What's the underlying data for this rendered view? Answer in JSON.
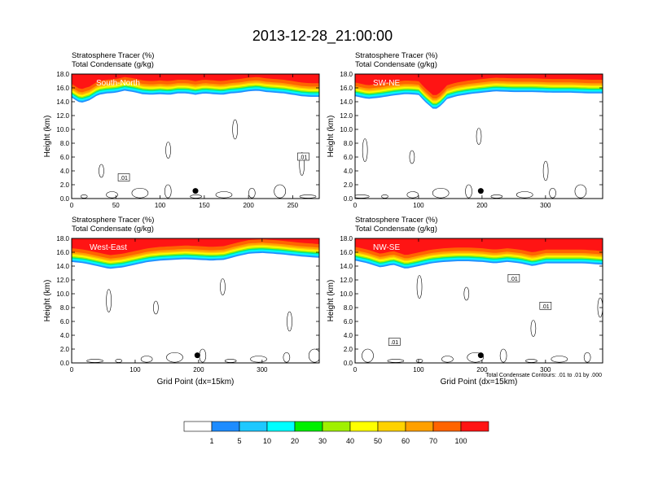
{
  "figure": {
    "title": "2013-12-28_21:00:00",
    "footnote": "Total Condensate Contours: .01 to .01 by .000",
    "colors": {
      "levels": [
        "#ffffff",
        "#1e8cff",
        "#1ec8ff",
        "#00ffff",
        "#00e68c",
        "#00f000",
        "#a0f000",
        "#ffff00",
        "#ffd200",
        "#ffa000",
        "#ff6400",
        "#ff1414"
      ]
    }
  },
  "chart_data": [
    {
      "type": "heatmap",
      "id": "south-north",
      "label": "South-North",
      "header_line1": "Stratosphere Tracer   (%)",
      "header_line2": "Total Condensate   (g/kg)",
      "ylabel": "Height (km)",
      "xlabel": "",
      "xlim": [
        0,
        280
      ],
      "ylim": [
        0,
        18
      ],
      "xticks": [
        "0",
        "50",
        "100",
        "150",
        "200",
        "250"
      ],
      "yticks": [
        "0.0",
        "2.0",
        "4.0",
        "6.0",
        "8.0",
        "10.0",
        "12.0",
        "14.0",
        "16.0",
        "18.0"
      ],
      "tracer_front_km": [
        [
          0,
          15.2
        ],
        [
          10,
          14.4
        ],
        [
          20,
          14.8
        ],
        [
          30,
          15.6
        ],
        [
          40,
          15.8
        ],
        [
          50,
          15.9
        ],
        [
          60,
          16.2
        ],
        [
          70,
          16.0
        ],
        [
          80,
          15.7
        ],
        [
          90,
          15.6
        ],
        [
          100,
          15.7
        ],
        [
          110,
          15.6
        ],
        [
          120,
          15.8
        ],
        [
          130,
          15.8
        ],
        [
          140,
          15.6
        ],
        [
          150,
          15.8
        ],
        [
          160,
          15.7
        ],
        [
          170,
          15.6
        ],
        [
          180,
          15.8
        ],
        [
          190,
          15.9
        ],
        [
          200,
          16.1
        ],
        [
          210,
          16.2
        ],
        [
          220,
          16.0
        ],
        [
          230,
          15.9
        ],
        [
          240,
          15.8
        ],
        [
          250,
          15.6
        ],
        [
          260,
          15.4
        ],
        [
          270,
          15.3
        ],
        [
          280,
          15.3
        ]
      ],
      "marker": {
        "x": 140,
        "y": 1.1
      },
      "contour_labels": [
        {
          "x": 59,
          "y": 3.0,
          "text": ".01"
        },
        {
          "x": 262,
          "y": 6.0,
          "text": ".01"
        }
      ]
    },
    {
      "type": "heatmap",
      "id": "sw-ne",
      "label": "SW-NE",
      "header_line1": "Stratosphere Tracer   (%)",
      "header_line2": "Total Condensate   (g/kg)",
      "ylabel": "Height (km)",
      "xlabel": "",
      "xlim": [
        0,
        390
      ],
      "ylim": [
        0,
        18
      ],
      "xticks": [
        "0",
        "100",
        "200",
        "300"
      ],
      "yticks": [
        "0.0",
        "2.0",
        "4.0",
        "6.0",
        "8.0",
        "10.0",
        "12.0",
        "14.0",
        "16.0",
        "18.0"
      ],
      "tracer_front_km": [
        [
          0,
          15.4
        ],
        [
          20,
          15.0
        ],
        [
          40,
          15.2
        ],
        [
          60,
          15.5
        ],
        [
          80,
          15.7
        ],
        [
          100,
          15.6
        ],
        [
          110,
          14.6
        ],
        [
          125,
          13.4
        ],
        [
          135,
          14.0
        ],
        [
          145,
          15.0
        ],
        [
          160,
          15.4
        ],
        [
          180,
          15.7
        ],
        [
          200,
          15.9
        ],
        [
          220,
          16.1
        ],
        [
          250,
          16.0
        ],
        [
          280,
          16.0
        ],
        [
          310,
          15.9
        ],
        [
          340,
          15.9
        ],
        [
          370,
          15.8
        ],
        [
          390,
          15.8
        ]
      ],
      "marker": {
        "x": 198,
        "y": 1.1
      },
      "contour_labels": []
    },
    {
      "type": "heatmap",
      "id": "west-east",
      "label": "West-East",
      "header_line1": "Stratosphere Tracer   (%)",
      "header_line2": "Total Condensate   (g/kg)",
      "ylabel": "Height (km)",
      "xlabel": "Grid Point (dx=15km)",
      "xlim": [
        0,
        390
      ],
      "ylim": [
        0,
        18
      ],
      "xticks": [
        "0",
        "100",
        "200",
        "300"
      ],
      "yticks": [
        "0.0",
        "2.0",
        "4.0",
        "6.0",
        "8.0",
        "10.0",
        "12.0",
        "14.0",
        "16.0",
        "18.0"
      ],
      "tracer_front_km": [
        [
          0,
          15.2
        ],
        [
          20,
          15.0
        ],
        [
          40,
          14.6
        ],
        [
          60,
          14.2
        ],
        [
          80,
          14.4
        ],
        [
          100,
          14.8
        ],
        [
          120,
          15.2
        ],
        [
          140,
          15.4
        ],
        [
          160,
          15.5
        ],
        [
          180,
          15.6
        ],
        [
          200,
          15.5
        ],
        [
          220,
          15.4
        ],
        [
          240,
          15.5
        ],
        [
          260,
          16.0
        ],
        [
          280,
          16.4
        ],
        [
          300,
          16.5
        ],
        [
          330,
          16.3
        ],
        [
          360,
          16.0
        ],
        [
          390,
          15.8
        ]
      ],
      "marker": {
        "x": 198,
        "y": 1.1
      },
      "contour_labels": []
    },
    {
      "type": "heatmap",
      "id": "nw-se",
      "label": "NW-SE",
      "header_line1": "Stratosphere Tracer   (%)",
      "header_line2": "Total Condensate   (g/kg)",
      "ylabel": "Height (km)",
      "xlabel": "Grid Point (dx=15km)",
      "xlim": [
        0,
        390
      ],
      "ylim": [
        0,
        18
      ],
      "xticks": [
        "0",
        "100",
        "200",
        "300"
      ],
      "yticks": [
        "0.0",
        "2.0",
        "4.0",
        "6.0",
        "8.0",
        "10.0",
        "12.0",
        "14.0",
        "16.0",
        "18.0"
      ],
      "tracer_front_km": [
        [
          0,
          15.4
        ],
        [
          20,
          15.0
        ],
        [
          40,
          14.4
        ],
        [
          60,
          14.8
        ],
        [
          80,
          14.2
        ],
        [
          100,
          14.6
        ],
        [
          120,
          15.0
        ],
        [
          140,
          15.2
        ],
        [
          160,
          15.3
        ],
        [
          180,
          15.3
        ],
        [
          200,
          15.2
        ],
        [
          220,
          15.0
        ],
        [
          240,
          15.2
        ],
        [
          260,
          15.0
        ],
        [
          280,
          14.6
        ],
        [
          300,
          15.0
        ],
        [
          330,
          15.0
        ],
        [
          360,
          15.0
        ],
        [
          390,
          14.8
        ]
      ],
      "marker": {
        "x": 198,
        "y": 1.1
      },
      "contour_labels": [
        {
          "x": 62,
          "y": 3.0,
          "text": ".01"
        },
        {
          "x": 250,
          "y": 12.2,
          "text": ".01"
        },
        {
          "x": 300,
          "y": 8.2,
          "text": ".01"
        }
      ]
    }
  ],
  "colorbar": {
    "labels": [
      "1",
      "5",
      "10",
      "20",
      "30",
      "40",
      "50",
      "60",
      "70",
      "100"
    ]
  }
}
